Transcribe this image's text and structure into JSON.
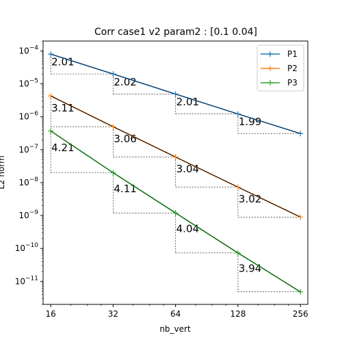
{
  "chart_data": {
    "type": "line",
    "title": "Corr case1 v2 param2 : [0.1  0.04]",
    "xlabel": "nb_vert",
    "ylabel": "L2 norm",
    "xscale": "log2",
    "yscale": "log10",
    "xlim": [
      14.7,
      278
    ],
    "ylim": [
      2e-12,
      0.0002
    ],
    "x": [
      16,
      32,
      64,
      128,
      256
    ],
    "x_tick_labels": [
      "16",
      "32",
      "64",
      "128",
      "256"
    ],
    "y_tick_exponents": [
      -4,
      -5,
      -6,
      -7,
      -8,
      -9,
      -10,
      -11
    ],
    "legend_position": "top-right",
    "series": [
      {
        "name": "P1",
        "color": "#1f77b4",
        "fit_color": "#0a2f57",
        "values": [
          8e-05,
          2e-05,
          4.9e-06,
          1.22e-06,
          3.1e-07
        ],
        "slopes": [
          "2.01",
          "2.02",
          "2.01",
          "1.99"
        ]
      },
      {
        "name": "P2",
        "color": "#ff7f0e",
        "fit_color": "#000000",
        "values": [
          4.3e-06,
          5e-07,
          6e-08,
          7.3e-09,
          9e-10
        ],
        "slopes": [
          "3.11",
          "3.06",
          "3.04",
          "3.02"
        ]
      },
      {
        "name": "P3",
        "color": "#2ca02c",
        "fit_color": "#0b5d0b",
        "values": [
          3.7e-07,
          2e-08,
          1.2e-09,
          7.3e-11,
          4.8e-12
        ],
        "slopes": [
          "4.21",
          "4.11",
          "4.04",
          "3.94"
        ]
      }
    ]
  }
}
